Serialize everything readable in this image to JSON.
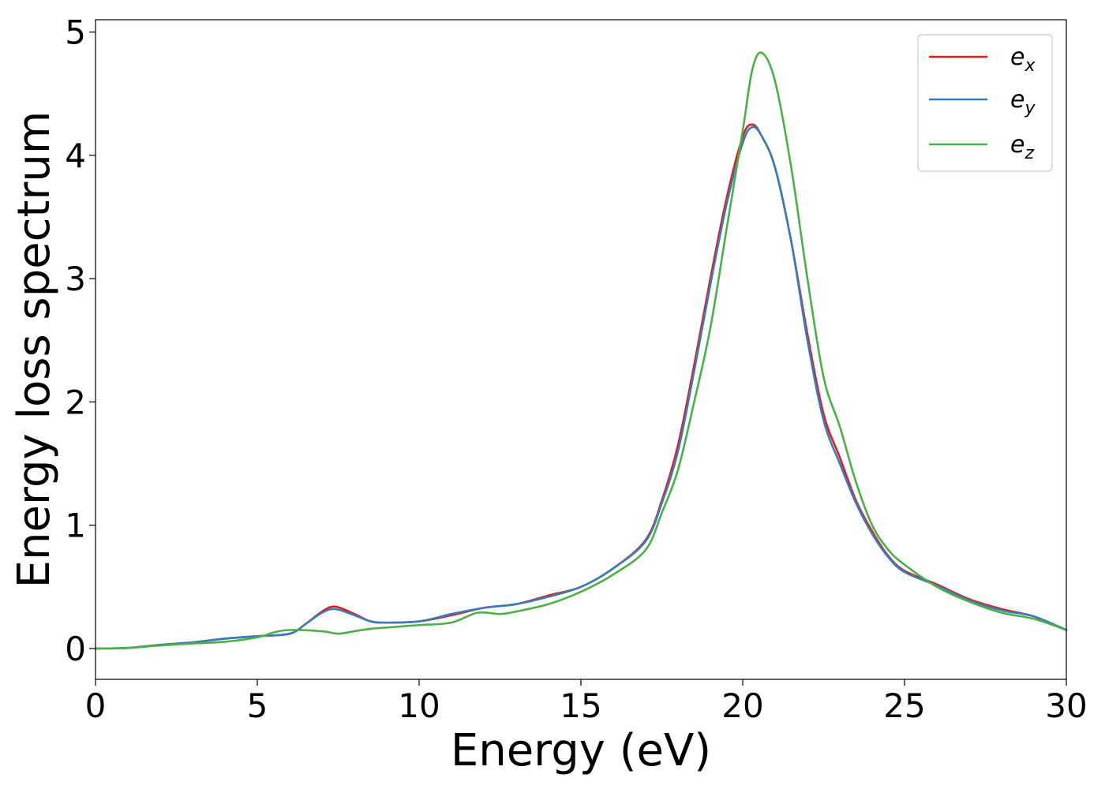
{
  "chart_data": {
    "type": "line",
    "title": "",
    "xlabel": "Energy (eV)",
    "ylabel": "Energy loss spectrum",
    "xlim": [
      0,
      30
    ],
    "ylim": [
      -0.25,
      5.1
    ],
    "xticks": [
      0,
      5,
      10,
      15,
      20,
      25,
      30
    ],
    "xtick_labels": [
      "0",
      "5",
      "10",
      "15",
      "20",
      "25",
      "30"
    ],
    "yticks": [
      0,
      1,
      2,
      3,
      4,
      5
    ],
    "ytick_labels": [
      "0",
      "1",
      "2",
      "3",
      "4",
      "5"
    ],
    "grid": false,
    "legend_position": "top-right",
    "series": [
      {
        "name": "e",
        "name_sub": "x",
        "color": "#e41a1c",
        "points": [
          [
            0,
            0
          ],
          [
            1,
            0.005
          ],
          [
            2,
            0.03
          ],
          [
            3,
            0.05
          ],
          [
            4,
            0.08
          ],
          [
            5,
            0.1
          ],
          [
            6,
            0.12
          ],
          [
            6.5,
            0.2
          ],
          [
            7,
            0.3
          ],
          [
            7.4,
            0.34
          ],
          [
            8,
            0.28
          ],
          [
            8.5,
            0.22
          ],
          [
            9,
            0.21
          ],
          [
            10,
            0.22
          ],
          [
            11,
            0.27
          ],
          [
            12,
            0.33
          ],
          [
            13,
            0.36
          ],
          [
            14,
            0.43
          ],
          [
            15,
            0.5
          ],
          [
            16,
            0.65
          ],
          [
            17,
            0.88
          ],
          [
            17.5,
            1.2
          ],
          [
            18,
            1.65
          ],
          [
            18.5,
            2.3
          ],
          [
            19,
            3.0
          ],
          [
            19.5,
            3.65
          ],
          [
            20,
            4.15
          ],
          [
            20.3,
            4.25
          ],
          [
            20.6,
            4.15
          ],
          [
            21,
            3.9
          ],
          [
            21.5,
            3.3
          ],
          [
            22,
            2.55
          ],
          [
            22.5,
            1.9
          ],
          [
            23,
            1.55
          ],
          [
            23.5,
            1.2
          ],
          [
            24,
            0.95
          ],
          [
            24.5,
            0.75
          ],
          [
            25,
            0.63
          ],
          [
            26,
            0.52
          ],
          [
            27,
            0.4
          ],
          [
            28,
            0.32
          ],
          [
            29,
            0.26
          ],
          [
            30,
            0.15
          ]
        ]
      },
      {
        "name": "e",
        "name_sub": "y",
        "color": "#377eb8",
        "points": [
          [
            0,
            0
          ],
          [
            1,
            0.005
          ],
          [
            2,
            0.03
          ],
          [
            3,
            0.05
          ],
          [
            4,
            0.08
          ],
          [
            5,
            0.1
          ],
          [
            6,
            0.12
          ],
          [
            6.5,
            0.2
          ],
          [
            7,
            0.29
          ],
          [
            7.4,
            0.32
          ],
          [
            8,
            0.27
          ],
          [
            8.5,
            0.22
          ],
          [
            9,
            0.21
          ],
          [
            10,
            0.22
          ],
          [
            11,
            0.28
          ],
          [
            12,
            0.33
          ],
          [
            13,
            0.36
          ],
          [
            14,
            0.42
          ],
          [
            15,
            0.5
          ],
          [
            16,
            0.65
          ],
          [
            17,
            0.87
          ],
          [
            17.5,
            1.18
          ],
          [
            18,
            1.6
          ],
          [
            18.5,
            2.25
          ],
          [
            19,
            2.95
          ],
          [
            19.5,
            3.6
          ],
          [
            20,
            4.1
          ],
          [
            20.3,
            4.23
          ],
          [
            20.6,
            4.15
          ],
          [
            21,
            3.9
          ],
          [
            21.5,
            3.3
          ],
          [
            22,
            2.5
          ],
          [
            22.5,
            1.85
          ],
          [
            23,
            1.5
          ],
          [
            23.5,
            1.18
          ],
          [
            24,
            0.93
          ],
          [
            24.5,
            0.74
          ],
          [
            25,
            0.62
          ],
          [
            26,
            0.51
          ],
          [
            27,
            0.39
          ],
          [
            28,
            0.31
          ],
          [
            29,
            0.26
          ],
          [
            30,
            0.15
          ]
        ]
      },
      {
        "name": "e",
        "name_sub": "z",
        "color": "#4daf4a",
        "points": [
          [
            0,
            0
          ],
          [
            1,
            0.005
          ],
          [
            2,
            0.025
          ],
          [
            3,
            0.04
          ],
          [
            4,
            0.055
          ],
          [
            5,
            0.09
          ],
          [
            5.5,
            0.13
          ],
          [
            6,
            0.15
          ],
          [
            7,
            0.14
          ],
          [
            7.5,
            0.12
          ],
          [
            8,
            0.14
          ],
          [
            8.5,
            0.16
          ],
          [
            9,
            0.17
          ],
          [
            10,
            0.19
          ],
          [
            11,
            0.21
          ],
          [
            11.8,
            0.29
          ],
          [
            12.5,
            0.28
          ],
          [
            13,
            0.3
          ],
          [
            14,
            0.36
          ],
          [
            15,
            0.46
          ],
          [
            16,
            0.6
          ],
          [
            17,
            0.8
          ],
          [
            17.5,
            1.1
          ],
          [
            18,
            1.45
          ],
          [
            18.5,
            2.0
          ],
          [
            19,
            2.6
          ],
          [
            19.5,
            3.4
          ],
          [
            20,
            4.2
          ],
          [
            20.3,
            4.7
          ],
          [
            20.6,
            4.83
          ],
          [
            21,
            4.6
          ],
          [
            21.5,
            3.9
          ],
          [
            22,
            3.0
          ],
          [
            22.5,
            2.2
          ],
          [
            23,
            1.8
          ],
          [
            23.5,
            1.35
          ],
          [
            24,
            1.0
          ],
          [
            24.5,
            0.8
          ],
          [
            25,
            0.68
          ],
          [
            26,
            0.5
          ],
          [
            27,
            0.38
          ],
          [
            28,
            0.29
          ],
          [
            29,
            0.24
          ],
          [
            30,
            0.15
          ]
        ]
      }
    ]
  }
}
